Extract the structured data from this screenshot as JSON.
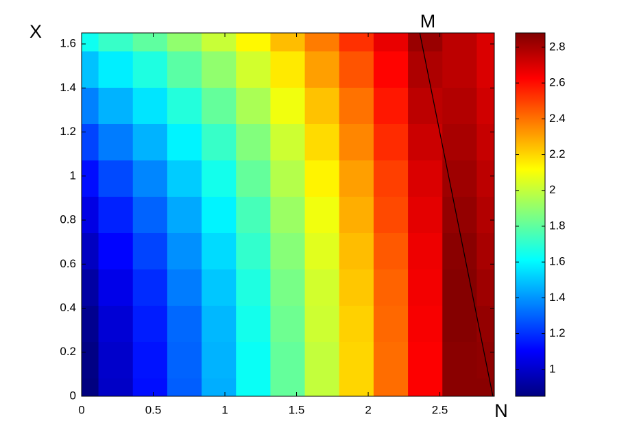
{
  "chart_data": {
    "type": "contourf",
    "ylabel": "X",
    "xlabel": "N",
    "annotation": "M",
    "colormap": "jet",
    "x": [
      0,
      0.24,
      0.48,
      0.72,
      0.96,
      1.2,
      1.44,
      1.68,
      1.92,
      2.16,
      2.4,
      2.64,
      2.88
    ],
    "y": [
      0,
      0.165,
      0.33,
      0.495,
      0.66,
      0.825,
      0.99,
      1.155,
      1.32,
      1.485,
      1.65
    ],
    "z": [
      [
        0.85,
        0.99,
        1.13,
        1.29,
        1.45,
        1.63,
        1.81,
        2.0,
        2.2,
        2.41,
        2.63,
        2.86,
        2.86
      ],
      [
        0.86,
        1.0,
        1.14,
        1.3,
        1.46,
        1.63,
        1.81,
        2.0,
        2.2,
        2.41,
        2.63,
        2.86,
        2.85
      ],
      [
        0.88,
        1.02,
        1.16,
        1.31,
        1.47,
        1.65,
        1.83,
        2.02,
        2.21,
        2.42,
        2.64,
        2.87,
        2.84
      ],
      [
        0.92,
        1.06,
        1.19,
        1.35,
        1.5,
        1.67,
        1.85,
        2.03,
        2.23,
        2.43,
        2.65,
        2.87,
        2.82
      ],
      [
        0.98,
        1.11,
        1.24,
        1.39,
        1.54,
        1.71,
        1.88,
        2.06,
        2.25,
        2.45,
        2.66,
        2.86,
        2.8
      ],
      [
        1.05,
        1.17,
        1.3,
        1.44,
        1.59,
        1.75,
        1.92,
        2.09,
        2.28,
        2.48,
        2.68,
        2.84,
        2.78
      ],
      [
        1.13,
        1.25,
        1.37,
        1.51,
        1.65,
        1.81,
        1.97,
        2.14,
        2.31,
        2.5,
        2.7,
        2.82,
        2.76
      ],
      [
        1.24,
        1.35,
        1.46,
        1.59,
        1.72,
        1.87,
        2.02,
        2.19,
        2.36,
        2.54,
        2.73,
        2.8,
        2.74
      ],
      [
        1.36,
        1.46,
        1.56,
        1.68,
        1.81,
        1.95,
        2.09,
        2.24,
        2.4,
        2.58,
        2.76,
        2.78,
        2.72
      ],
      [
        1.49,
        1.58,
        1.67,
        1.79,
        1.9,
        2.03,
        2.16,
        2.31,
        2.46,
        2.62,
        2.79,
        2.76,
        2.7
      ],
      [
        1.64,
        1.72,
        1.8,
        1.9,
        2.01,
        2.13,
        2.25,
        2.38,
        2.53,
        2.67,
        2.83,
        2.76,
        2.7
      ]
    ],
    "line": {
      "x": [
        2.36,
        2.87
      ],
      "y": [
        1.65,
        0
      ]
    },
    "xlim": [
      0,
      2.88
    ],
    "ylim": [
      0,
      1.65
    ],
    "xticks": [
      0,
      0.5,
      1,
      1.5,
      2,
      2.5
    ],
    "yticks": [
      0,
      0.2,
      0.4,
      0.6,
      0.8,
      1,
      1.2,
      1.4,
      1.6
    ],
    "clim": [
      0.85,
      2.88
    ],
    "cticks": [
      1,
      1.2,
      1.4,
      1.6,
      1.8,
      2,
      2.2,
      2.4,
      2.6,
      2.8
    ]
  }
}
